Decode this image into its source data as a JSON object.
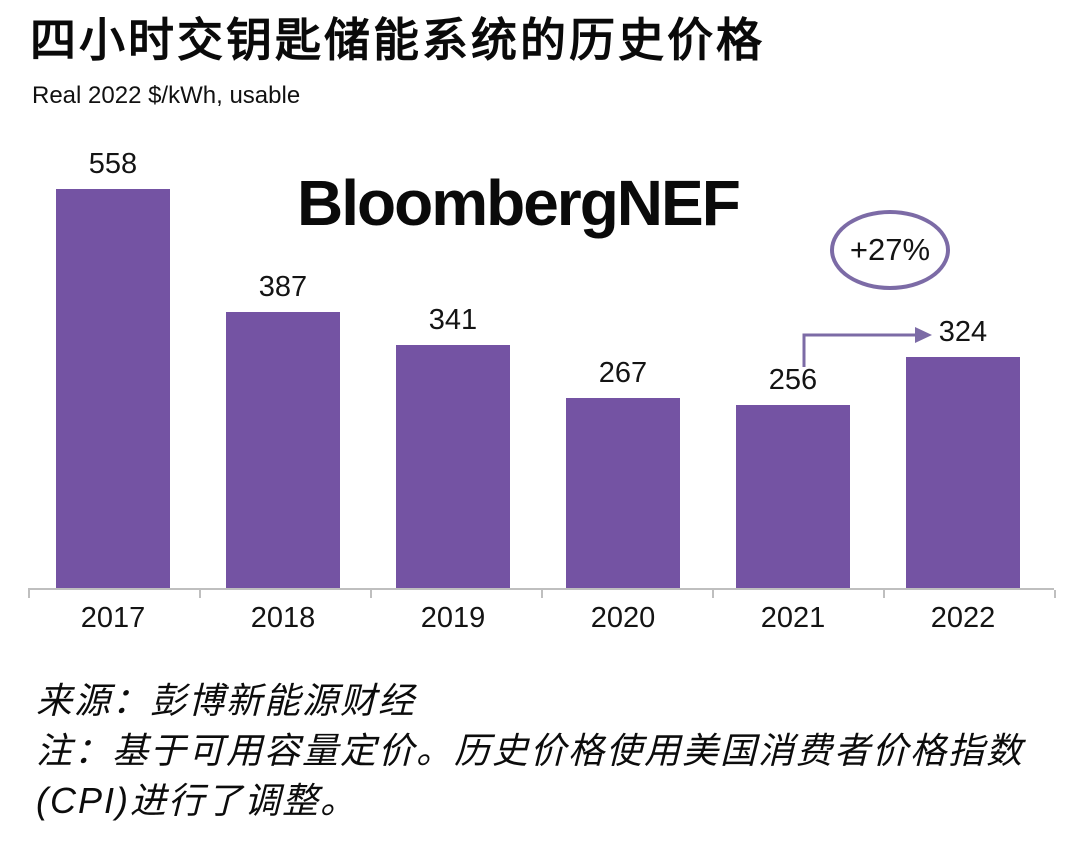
{
  "page": {
    "title": "四小时交钥匙储能系统的历史价格",
    "subtitle": "Real 2022 $/kWh, usable",
    "watermark": "BloombergNEF",
    "source": "来源：彭博新能源财经",
    "note": "注：基于可用容量定价。历史价格使用美国消费者价格指数(CPI)进行了调整。"
  },
  "annotation": {
    "growth_label": "+27%",
    "from_category": "2021",
    "to_category": "2022"
  },
  "colors": {
    "bar": "#7453A3",
    "accent": "#7C6BA6",
    "axis": "#BFBFBF",
    "text": "#0B0B0B"
  },
  "chart_data": {
    "type": "bar",
    "categories": [
      "2017",
      "2018",
      "2019",
      "2020",
      "2021",
      "2022"
    ],
    "values": [
      558,
      387,
      341,
      267,
      256,
      324
    ],
    "title": "四小时交钥匙储能系统的历史价格",
    "xlabel": "",
    "ylabel": "Real 2022 $/kWh, usable",
    "ylim": [
      0,
      600
    ],
    "grid": false,
    "legend": "none",
    "data_labels": true,
    "bar_color": "#7453A3",
    "annotations": [
      {
        "type": "ellipse-badge",
        "text": "+27%"
      },
      {
        "type": "elbow-arrow",
        "from_category": "2021",
        "to_category": "2022"
      }
    ]
  }
}
